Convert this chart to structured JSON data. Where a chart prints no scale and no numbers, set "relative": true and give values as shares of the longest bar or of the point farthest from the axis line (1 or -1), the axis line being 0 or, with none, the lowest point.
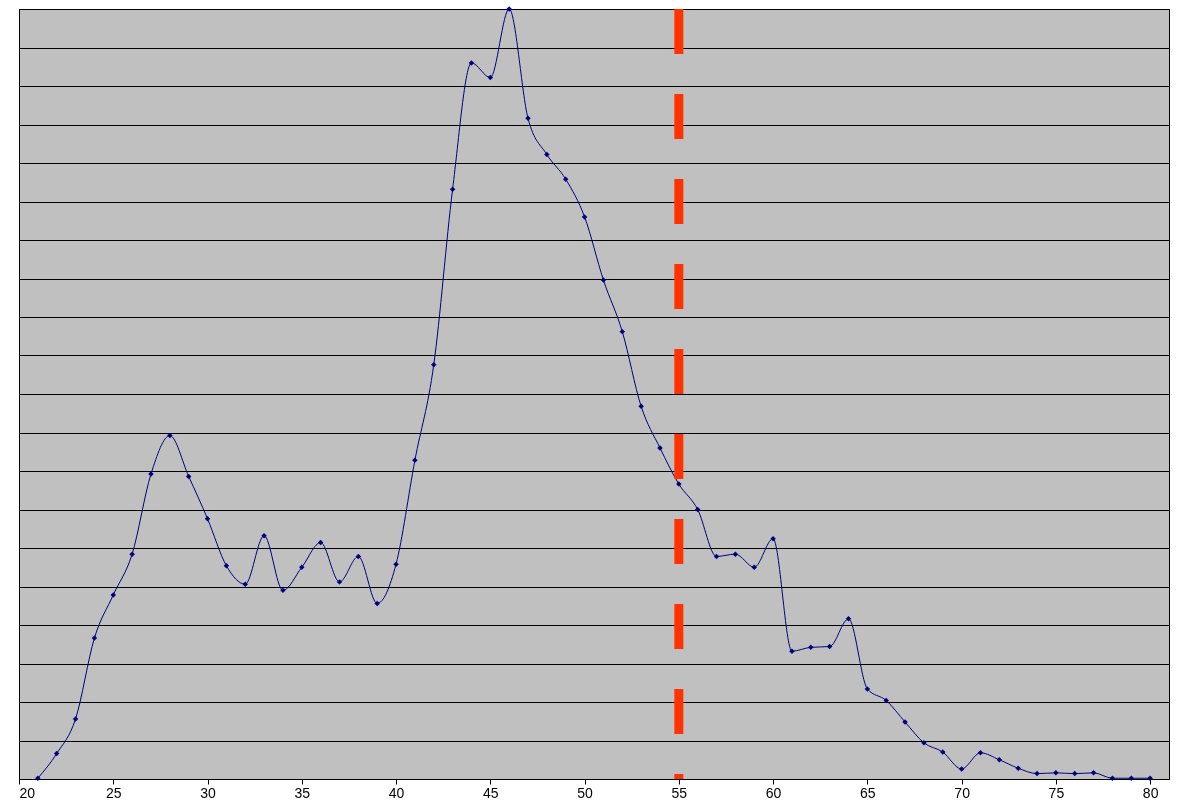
{
  "chart_data": {
    "type": "line",
    "relative": true,
    "marker": "diamond",
    "line_style": "solid",
    "grid": "y",
    "x": [
      21,
      22,
      23,
      24,
      25,
      26,
      27,
      28,
      29,
      30,
      31,
      32,
      33,
      34,
      35,
      36,
      37,
      38,
      39,
      40,
      41,
      42,
      43,
      44,
      45,
      46,
      47,
      48,
      49,
      50,
      51,
      52,
      53,
      54,
      55,
      56,
      57,
      58,
      59,
      60,
      61,
      62,
      63,
      64,
      65,
      66,
      67,
      68,
      69,
      70,
      71,
      72,
      73,
      74,
      75,
      76,
      77,
      78,
      79,
      80
    ],
    "series": [
      {
        "color": "#000080",
        "values": [
          0.001,
          0.033,
          0.078,
          0.183,
          0.239,
          0.292,
          0.396,
          0.446,
          0.393,
          0.338,
          0.277,
          0.253,
          0.316,
          0.245,
          0.275,
          0.307,
          0.256,
          0.289,
          0.228,
          0.279,
          0.414,
          0.538,
          0.766,
          0.93,
          0.911,
          1.0,
          0.858,
          0.811,
          0.779,
          0.73,
          0.648,
          0.581,
          0.484,
          0.43,
          0.383,
          0.35,
          0.289,
          0.292,
          0.275,
          0.312,
          0.166,
          0.171,
          0.172,
          0.208,
          0.117,
          0.102,
          0.074,
          0.047,
          0.035,
          0.013,
          0.034,
          0.025,
          0.014,
          0.007,
          0.008,
          0.007,
          0.008,
          0.001,
          0.001,
          0.001
        ]
      }
    ],
    "xlim": [
      20,
      81
    ],
    "xticks": [
      20,
      25,
      30,
      35,
      40,
      45,
      50,
      55,
      60,
      65,
      70,
      75,
      80
    ],
    "ref_lines": [
      {
        "axis": "x",
        "value": 55,
        "color": "#ff3300",
        "line_style": "dashed"
      }
    ]
  }
}
